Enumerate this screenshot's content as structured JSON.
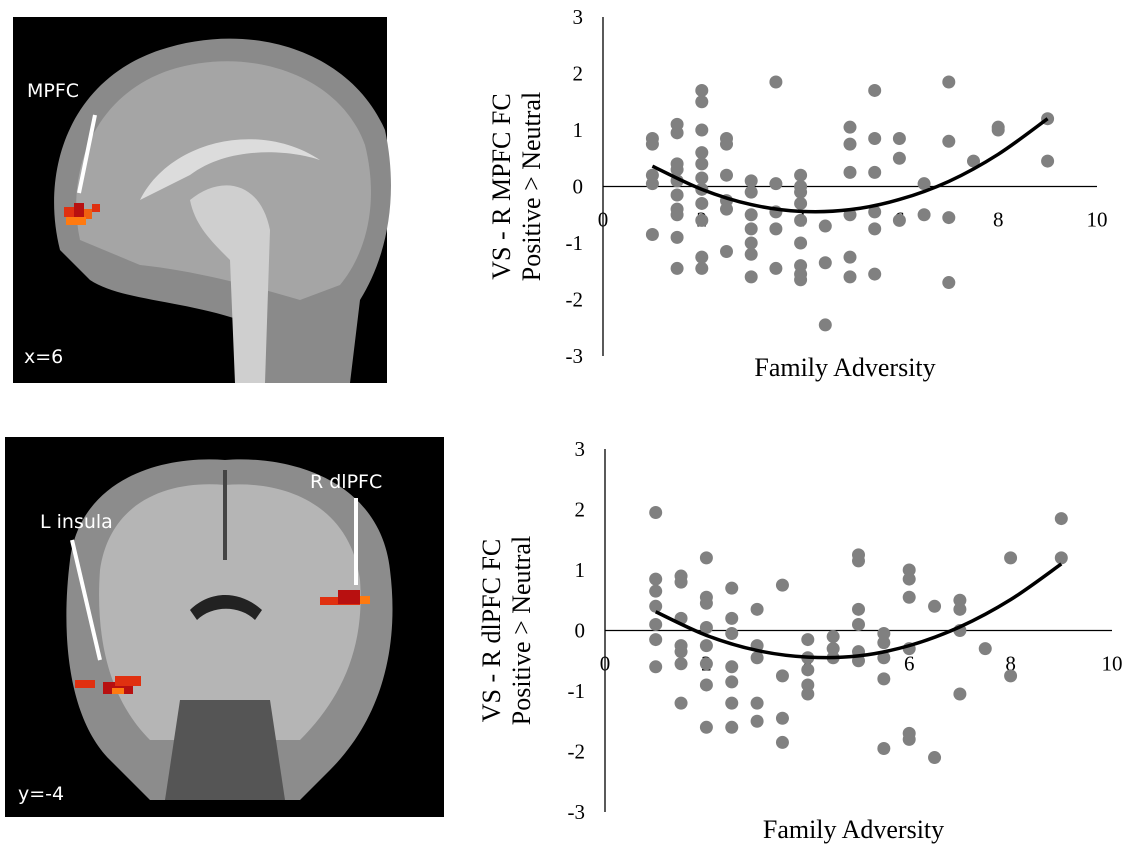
{
  "images": [
    {
      "labels": [
        "MPFC"
      ],
      "coord": "x=6"
    },
    {
      "labels": [
        "L insula",
        "R dlPFC"
      ],
      "coord": "y=-4"
    }
  ],
  "chart_data": [
    {
      "type": "scatter",
      "ylabel": [
        "VS - R MPFC FC",
        "Positive > Neutral"
      ],
      "xlabel": "Family Adversity",
      "xlim": [
        0,
        10
      ],
      "xticks": [
        0,
        2,
        4,
        6,
        8,
        10
      ],
      "ylim": [
        -3,
        3
      ],
      "yticks": [
        -3,
        -2,
        -1,
        0,
        1,
        2,
        3
      ],
      "color": "#808080",
      "x": [
        1,
        1,
        1,
        1,
        1,
        1.5,
        1.5,
        1.5,
        1.5,
        1.5,
        1.5,
        1.5,
        1.5,
        1.5,
        1.5,
        2,
        2,
        2,
        2,
        2,
        2,
        2,
        2,
        2,
        2,
        2,
        2.5,
        2.5,
        2.5,
        2.5,
        2.5,
        2.5,
        3,
        3,
        3,
        3,
        3,
        3,
        3,
        3.5,
        3.5,
        3.5,
        3.5,
        3.5,
        4,
        4,
        4,
        4,
        4,
        4,
        4,
        4,
        4,
        4.5,
        4.5,
        4.5,
        5,
        5,
        5,
        5,
        5,
        5,
        5.5,
        5.5,
        5.5,
        5.5,
        5.5,
        5.5,
        6,
        6,
        6,
        6.5,
        6.5,
        7,
        7,
        7,
        7,
        7.5,
        8,
        8,
        9,
        9
      ],
      "values": [
        0.85,
        0.75,
        0.2,
        0.05,
        -0.85,
        1.1,
        0.95,
        0.4,
        0.3,
        0.1,
        -0.15,
        -0.4,
        -0.5,
        -0.9,
        -1.45,
        1.7,
        1.5,
        1.0,
        0.6,
        0.4,
        0.15,
        -0.05,
        -0.3,
        -0.6,
        -1.25,
        -1.45,
        0.85,
        0.75,
        0.2,
        -0.25,
        -0.4,
        -1.15,
        0.1,
        -0.1,
        -0.5,
        -0.75,
        -1.0,
        -1.2,
        -1.6,
        1.85,
        0.05,
        -0.45,
        -0.75,
        -1.45,
        0.2,
        0.0,
        -0.1,
        -0.3,
        -0.6,
        -1.0,
        -1.4,
        -1.55,
        -1.65,
        -0.7,
        -1.35,
        -2.45,
        1.05,
        0.75,
        0.25,
        -0.5,
        -1.25,
        -1.6,
        1.7,
        0.85,
        0.25,
        -0.45,
        -0.75,
        -1.55,
        0.85,
        0.5,
        -0.6,
        0.05,
        -0.5,
        1.85,
        0.8,
        -0.55,
        -1.7,
        0.45,
        1.05,
        1.0,
        1.2,
        0.45
      ],
      "trendline": {
        "color": "#000000",
        "x": [
          1,
          2,
          3,
          4,
          5,
          6,
          7,
          8,
          9
        ],
        "values": [
          0.36,
          -0.05,
          -0.32,
          -0.44,
          -0.41,
          -0.23,
          0.09,
          0.57,
          1.2
        ]
      }
    },
    {
      "type": "scatter",
      "ylabel": [
        "VS - R dlPFC FC",
        "Positive > Neutral"
      ],
      "xlabel": "Family Adversity",
      "xlim": [
        0,
        10
      ],
      "xticks": [
        0,
        2,
        4,
        6,
        8,
        10
      ],
      "ylim": [
        -3,
        3
      ],
      "yticks": [
        -3,
        -2,
        -1,
        0,
        1,
        2,
        3
      ],
      "color": "#808080",
      "x": [
        1,
        1,
        1,
        1,
        1,
        1,
        1,
        1.5,
        1.5,
        1.5,
        1.5,
        1.5,
        1.5,
        1.5,
        2,
        2,
        2,
        2,
        2,
        2,
        2,
        2,
        2.5,
        2.5,
        2.5,
        2.5,
        2.5,
        2.5,
        2.5,
        3,
        3,
        3,
        3,
        3,
        3.5,
        3.5,
        3.5,
        3.5,
        4,
        4,
        4,
        4,
        4,
        4.5,
        4.5,
        4.5,
        5,
        5,
        5,
        5,
        5,
        5,
        5.5,
        5.5,
        5.5,
        5.5,
        5.5,
        6,
        6,
        6,
        6,
        6,
        6,
        6.5,
        6.5,
        7,
        7,
        7,
        7,
        7.5,
        8,
        8,
        9,
        9
      ],
      "values": [
        1.95,
        0.85,
        0.65,
        0.4,
        0.1,
        -0.15,
        -0.6,
        0.9,
        0.8,
        0.2,
        -0.25,
        -0.35,
        -0.55,
        -1.2,
        1.2,
        0.55,
        0.45,
        0.05,
        -0.25,
        -0.55,
        -0.9,
        -1.6,
        0.7,
        0.2,
        -0.05,
        -0.6,
        -0.85,
        -1.2,
        -1.6,
        0.35,
        -0.25,
        -0.45,
        -1.2,
        -1.5,
        0.75,
        -0.75,
        -1.45,
        -1.85,
        -0.15,
        -0.45,
        -0.65,
        -0.9,
        -1.05,
        -0.1,
        -0.3,
        -0.45,
        1.25,
        1.15,
        0.35,
        0.1,
        -0.35,
        -0.5,
        -0.05,
        -0.2,
        -0.45,
        -0.8,
        -1.95,
        1.0,
        0.85,
        0.55,
        -0.3,
        -1.7,
        -1.8,
        0.4,
        -2.1,
        0.5,
        0.35,
        0.0,
        -1.05,
        -0.3,
        1.2,
        -0.75,
        1.85,
        1.2
      ],
      "trendline": {
        "color": "#000000",
        "x": [
          1,
          2,
          3,
          4,
          5,
          6,
          7,
          8,
          9
        ],
        "values": [
          0.31,
          -0.08,
          -0.33,
          -0.44,
          -0.42,
          -0.25,
          0.06,
          0.51,
          1.1
        ]
      }
    }
  ]
}
